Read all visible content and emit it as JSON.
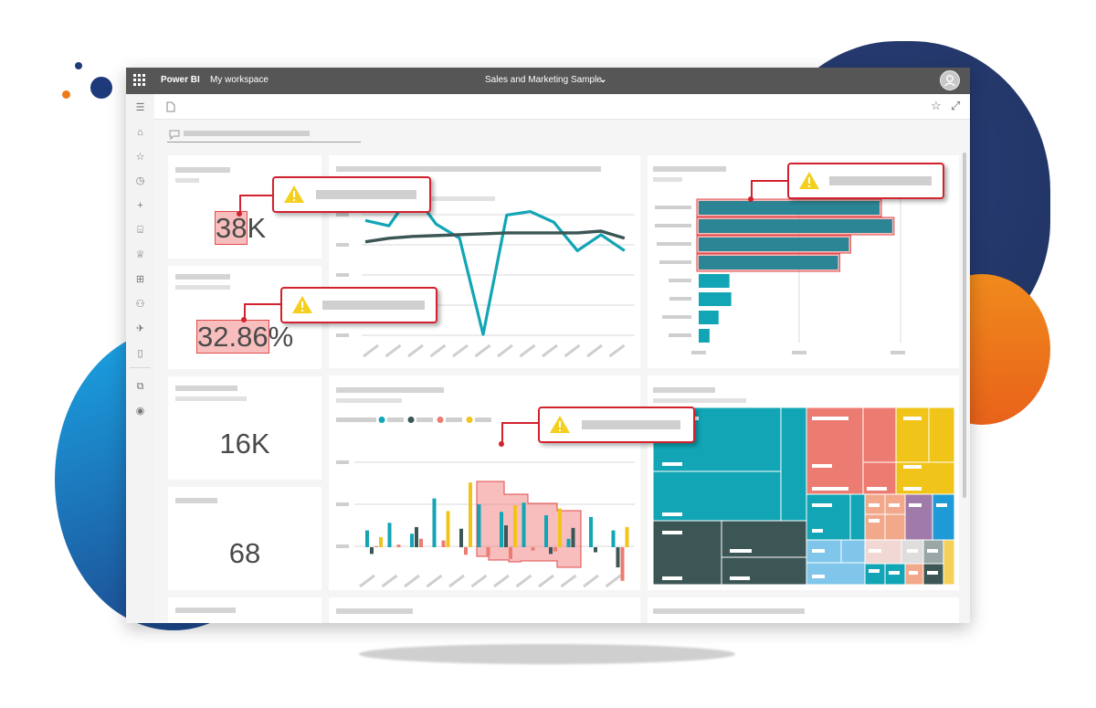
{
  "topbar": {
    "app_name": "Power BI",
    "workspace": "My workspace",
    "report_title": "Sales and Marketing Sample",
    "report_chevron": "⌄"
  },
  "actionbar": {
    "favorite_glyph": "☆",
    "fullscreen_glyph": "⤢"
  },
  "sidebar": {
    "items": [
      {
        "icon": "hamburger-icon",
        "glyph": "☰"
      },
      {
        "icon": "home-icon",
        "glyph": "⌂"
      },
      {
        "icon": "star-icon",
        "glyph": "☆"
      },
      {
        "icon": "clock-icon",
        "glyph": "◷"
      },
      {
        "icon": "plus-icon",
        "glyph": "+"
      },
      {
        "icon": "database-icon",
        "glyph": "⌸"
      },
      {
        "icon": "trophy-icon",
        "glyph": "♕"
      },
      {
        "icon": "apps-icon",
        "glyph": "⊞"
      },
      {
        "icon": "people-icon",
        "glyph": "⚇"
      },
      {
        "icon": "rocket-icon",
        "glyph": "✈"
      },
      {
        "icon": "book-icon",
        "glyph": "▯"
      },
      {
        "icon": "workspace-icon",
        "glyph": "⧉"
      },
      {
        "icon": "user-icon",
        "glyph": "◉"
      }
    ]
  },
  "kpis": {
    "tile1": {
      "highlight": "38",
      "rest": "K"
    },
    "tile2": {
      "highlight": "32.86",
      "rest": "%"
    },
    "tile3": {
      "value": "16K"
    },
    "tile4": {
      "value": "68"
    }
  },
  "colors": {
    "teal": "#11a5b5",
    "dark_slate": "#3c5656",
    "salmon": "#ec7b72",
    "yellow": "#f0c419",
    "highlight_red": "#d2222e",
    "warning_yellow": "#f4cf1e"
  },
  "chart_data": [
    {
      "type": "line",
      "series": [
        {
          "values": [
            6.6,
            6.3,
            8.2,
            6.4,
            5.6,
            0.2,
            6.9,
            7.1,
            6.5,
            4.9,
            5.8,
            4.9
          ]
        },
        {
          "values": [
            5.4,
            5.6,
            5.7,
            5.75,
            5.8,
            5.85,
            5.9,
            5.9,
            5.9,
            5.9,
            6.0,
            5.6
          ]
        }
      ]
    },
    {
      "type": "bar",
      "orientation": "horizontal",
      "values": [
        100,
        107,
        83,
        77,
        17,
        18,
        11,
        6
      ]
    },
    {
      "type": "bar",
      "series": [
        {
          "values": [
            20,
            29,
            16,
            58,
            0,
            51,
            42,
            53,
            38,
            10,
            36,
            20
          ]
        },
        {
          "values": [
            -8,
            0,
            24,
            0,
            22,
            0,
            26,
            0,
            -8,
            23,
            -6,
            -24
          ]
        },
        {
          "values": [
            1,
            3,
            10,
            8,
            -9,
            -10,
            -14,
            -4,
            -5,
            0,
            0,
            -40
          ]
        },
        {
          "values": [
            12,
            0,
            0,
            43,
            77,
            0,
            50,
            0,
            46,
            0,
            0,
            24
          ]
        }
      ]
    }
  ]
}
